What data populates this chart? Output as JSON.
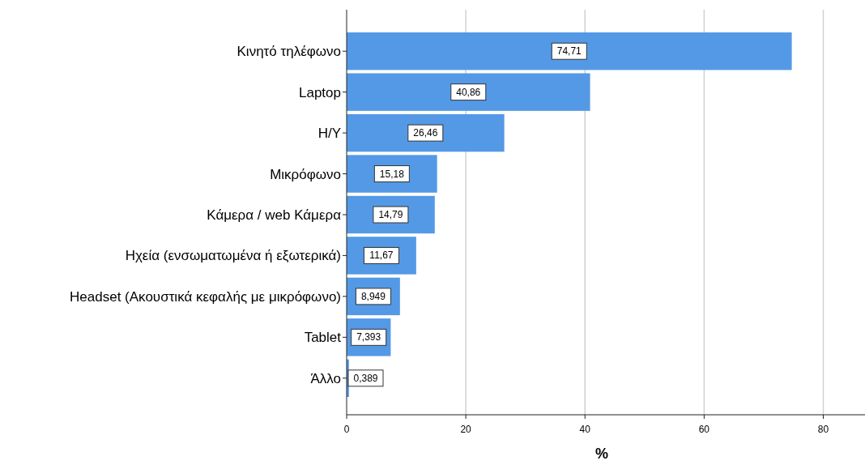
{
  "chart_data": {
    "type": "bar",
    "orientation": "horizontal",
    "xlabel": "%",
    "categories": [
      "Κινητό τηλέφωνο",
      "Laptop",
      "Η/Υ",
      "Μικρόφωνο",
      "Κάμερα / web Κάμερα",
      "Ηχεία (ενσωματωμένα ή εξωτερικά)",
      "Headset (Ακουστικά κεφαλής με μικρόφωνο)",
      "Tablet",
      "Άλλο"
    ],
    "values": [
      74.71,
      40.86,
      26.46,
      15.18,
      14.79,
      11.67,
      8.949,
      7.393,
      0.389
    ],
    "value_labels": [
      "74,71",
      "40,86",
      "26,46",
      "15,18",
      "14,79",
      "11,67",
      "8,949",
      "7,393",
      "0,389"
    ],
    "color": "#5499e6",
    "xlim": [
      0,
      87
    ],
    "xticks": [
      0,
      20,
      40,
      60,
      80
    ],
    "grid": "x"
  }
}
